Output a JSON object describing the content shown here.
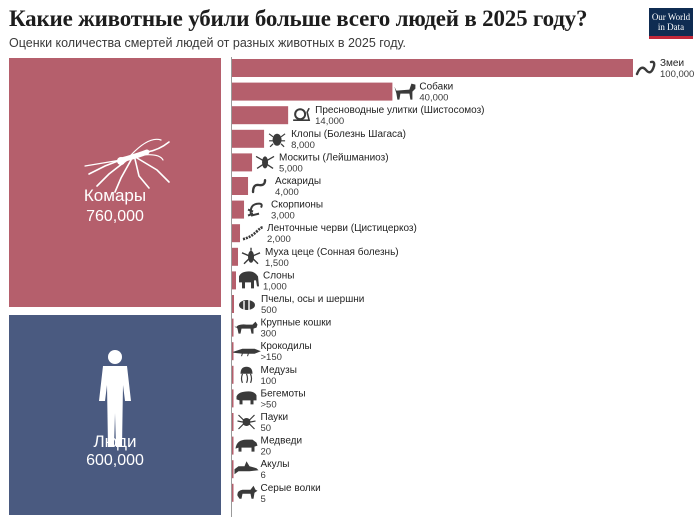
{
  "title": "Какие животные убили больше всего людей в 2025 году?",
  "subtitle": "Оценки количества смертей людей от разных животных в 2025 году.",
  "logo": {
    "line1": "Our World",
    "line2": "in Data"
  },
  "colors": {
    "bar": "#b55f6c",
    "mosquito": "#b55f6c",
    "humans": "#4a5a80",
    "icon": "#3a3a3a",
    "logo": "#0f2c52",
    "logo_accent": "#c1283a"
  },
  "chart_data": {
    "type": "bar",
    "title": "Какие животные убили больше всего людей в 2025 году?",
    "subtitle": "Оценки количества смертей людей от разных животных в 2025 году.",
    "highlight": [
      {
        "name": "Комары",
        "value": 760000,
        "label": "760,000",
        "icon": "mosquito-icon"
      },
      {
        "name": "Люди",
        "value": 600000,
        "label": "600,000",
        "icon": "human-icon"
      }
    ],
    "bars": [
      {
        "name": "Змеи",
        "value": 100000,
        "label": "100,000",
        "icon": "snake-icon"
      },
      {
        "name": "Собаки",
        "value": 40000,
        "label": "40,000",
        "icon": "dog-icon"
      },
      {
        "name": "Пресноводные улитки (Шистосомоз)",
        "value": 14000,
        "label": "14,000",
        "icon": "snail-icon"
      },
      {
        "name": "Клопы (Болезнь Шагаса)",
        "value": 8000,
        "label": "8,000",
        "icon": "bug-icon"
      },
      {
        "name": "Москиты (Лейшманиоз)",
        "value": 5000,
        "label": "5,000",
        "icon": "sandfly-icon"
      },
      {
        "name": "Аскариды",
        "value": 4000,
        "label": "4,000",
        "icon": "roundworm-icon"
      },
      {
        "name": "Скорпионы",
        "value": 3000,
        "label": "3,000",
        "icon": "scorpion-icon"
      },
      {
        "name": "Ленточные черви (Цистицеркоз)",
        "value": 2000,
        "label": "2,000",
        "icon": "tapeworm-icon"
      },
      {
        "name": "Муха цеце (Сонная болезнь)",
        "value": 1500,
        "label": "1,500",
        "icon": "tsetse-fly-icon"
      },
      {
        "name": "Слоны",
        "value": 1000,
        "label": "1,000",
        "icon": "elephant-icon"
      },
      {
        "name": "Пчелы, осы и шершни",
        "value": 500,
        "label": "500",
        "icon": "bee-icon"
      },
      {
        "name": "Крупные кошки",
        "value": 300,
        "label": "300",
        "icon": "big-cat-icon"
      },
      {
        "name": "Крокодилы",
        "value": 150,
        "label": ">150",
        "icon": "crocodile-icon"
      },
      {
        "name": "Медузы",
        "value": 100,
        "label": "100",
        "icon": "jellyfish-icon"
      },
      {
        "name": "Бегемоты",
        "value": 50,
        "label": ">50",
        "icon": "hippo-icon"
      },
      {
        "name": "Пауки",
        "value": 50,
        "label": "50",
        "icon": "spider-icon"
      },
      {
        "name": "Медведи",
        "value": 20,
        "label": "20",
        "icon": "bear-icon"
      },
      {
        "name": "Акулы",
        "value": 6,
        "label": "6",
        "icon": "shark-icon"
      },
      {
        "name": "Серые волки",
        "value": 5,
        "label": "5",
        "icon": "wolf-icon"
      }
    ]
  }
}
